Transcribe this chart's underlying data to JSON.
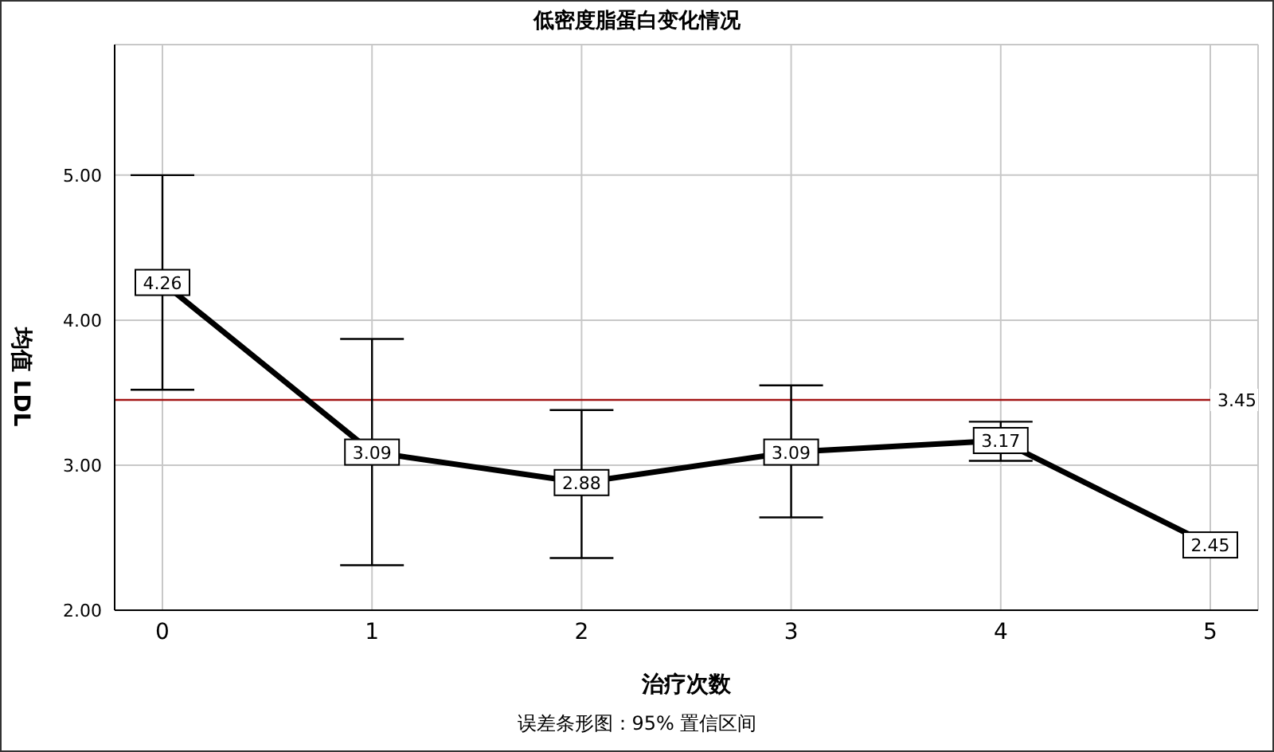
{
  "chart_data": {
    "type": "line",
    "title": "低密度脂蛋白变化情况",
    "xlabel": "治疗次数",
    "ylabel": "均值 LDL",
    "categories": [
      "0",
      "1",
      "2",
      "3",
      "4",
      "5"
    ],
    "series": [
      {
        "color": "#000000",
        "values": [
          4.26,
          3.09,
          2.88,
          3.09,
          3.17,
          2.45
        ],
        "errors": [
          [
            3.52,
            5.0
          ],
          [
            2.31,
            3.87
          ],
          [
            2.36,
            3.38
          ],
          [
            2.64,
            3.55
          ],
          [
            3.03,
            3.3
          ],
          null
        ]
      }
    ],
    "data_labels": true,
    "marker": "square",
    "line_style": "solid",
    "grid": true,
    "legend": false,
    "ylim": [
      2,
      5.9
    ],
    "yticks": [
      {
        "value": 2,
        "label": "2.00"
      },
      {
        "value": 3,
        "label": "3.00"
      },
      {
        "value": 4,
        "label": "4.00"
      },
      {
        "value": 5,
        "label": "5.00"
      }
    ],
    "ref_lines": [
      {
        "axis": "y",
        "value": 3.45,
        "label": "3.45",
        "color": "#a31515"
      }
    ],
    "annotations": [
      "误差条形图：95% 置信区间"
    ]
  }
}
